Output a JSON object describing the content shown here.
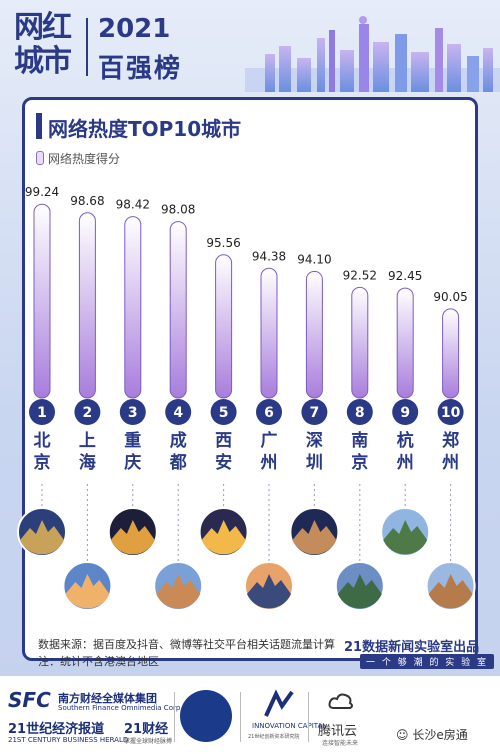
{
  "header": {
    "logo_line1": "网红",
    "logo_line2": "城市",
    "year": "2021",
    "subtitle": "百强榜"
  },
  "title": "网络热度TOP10城市",
  "legend_label": "网络热度得分",
  "chart_data": {
    "type": "bar",
    "title": "网络热度TOP10城市",
    "series": [
      {
        "name": "网络热度得分",
        "values": [
          99.24,
          98.68,
          98.42,
          98.08,
          95.56,
          94.38,
          94.1,
          92.52,
          92.45,
          90.05
        ]
      }
    ],
    "ranks": [
      "1",
      "2",
      "3",
      "4",
      "5",
      "6",
      "7",
      "8",
      "9",
      "10"
    ],
    "categories": [
      "北京",
      "上海",
      "重庆",
      "成都",
      "西安",
      "广州",
      "深圳",
      "南京",
      "杭州",
      "郑州"
    ],
    "value_labels": [
      "99.24",
      "98.68",
      "98.42",
      "98.08",
      "95.56",
      "94.38",
      "94.10",
      "92.52",
      "92.45",
      "90.05"
    ],
    "ylim": [
      0,
      100
    ]
  },
  "footer": {
    "source": "数据来源：据百度及抖音、微博等社交平台相关话题流量计算",
    "note": "注：统计不含港澳台地区",
    "lab": "21数据新闻实验室出品",
    "slogan": "一 个 够 潮 的 实 验 室"
  },
  "sponsors": {
    "sfc": "SFC",
    "sfc_cn": "南方财经全媒体集团",
    "sfc_en": "Southern Finance Omnimedia Corp.",
    "herald": "21世纪经济报道",
    "herald_en": "21ST CENTURY BUSINESS HERALD",
    "c21": "21财经",
    "c21_en": "掌握全球财经脉搏",
    "innov": "INNOVATION CAPITAL",
    "innov_sub": "21世纪创新资本研究院",
    "tencent": "腾讯云",
    "tencent_sub": "连接智能未来",
    "watermark": "长沙e房通"
  },
  "colors": {
    "navy": "#2a3a86",
    "bar_top": "#ffffff",
    "bar_bottom": "#a87ddc",
    "bar_border": "#7c5cc0"
  }
}
